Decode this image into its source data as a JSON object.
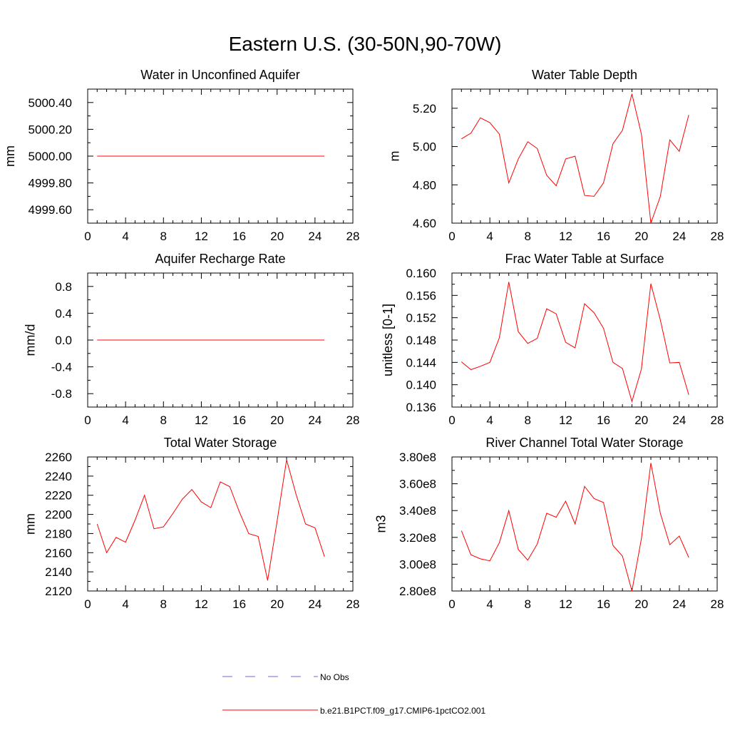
{
  "title": "Eastern U.S. (30-50N,90-70W)",
  "colors": {
    "model": "#ff0000",
    "obs": "#6b6bd6",
    "axis": "#000000"
  },
  "legend": [
    {
      "label": "No Obs",
      "style": "dashed",
      "color": "#6b6bd6"
    },
    {
      "label": "b.e21.B1PCT.f09_g17.CMIP6-1pctCO2.001",
      "style": "solid",
      "color": "#ff0000"
    }
  ],
  "chart_data": [
    {
      "type": "line",
      "title": "Water in Unconfined Aquifer",
      "ylabel": "mm",
      "xlim": [
        0,
        28
      ],
      "xticks": [
        0,
        4,
        8,
        12,
        16,
        20,
        24,
        28
      ],
      "xtick_labels": [
        "0",
        "4",
        "8",
        "12",
        "16",
        "20",
        "24",
        "28"
      ],
      "ylim": [
        4999.5,
        5000.5
      ],
      "yticks": [
        4999.6,
        4999.8,
        5000.0,
        5000.2,
        5000.4
      ],
      "ytick_labels": [
        "4999.60",
        "4999.80",
        "5000.00",
        "5000.20",
        "5000.40"
      ],
      "x": [
        1,
        2,
        3,
        4,
        5,
        6,
        7,
        8,
        9,
        10,
        11,
        12,
        13,
        14,
        15,
        16,
        17,
        18,
        19,
        20,
        21,
        22,
        23,
        24,
        25
      ],
      "values": [
        5000,
        5000,
        5000,
        5000,
        5000,
        5000,
        5000,
        5000,
        5000,
        5000,
        5000,
        5000,
        5000,
        5000,
        5000,
        5000,
        5000,
        5000,
        5000,
        5000,
        5000,
        5000,
        5000,
        5000,
        5000
      ]
    },
    {
      "type": "line",
      "title": "Water Table Depth",
      "ylabel": "m",
      "xlim": [
        0,
        28
      ],
      "xticks": [
        0,
        4,
        8,
        12,
        16,
        20,
        24,
        28
      ],
      "xtick_labels": [
        "0",
        "4",
        "8",
        "12",
        "16",
        "20",
        "24",
        "28"
      ],
      "ylim": [
        4.6,
        5.3
      ],
      "yticks": [
        4.6,
        4.8,
        5.0,
        5.2
      ],
      "ytick_labels": [
        "4.60",
        "4.80",
        "5.00",
        "5.20"
      ],
      "x": [
        1,
        2,
        3,
        4,
        5,
        6,
        7,
        8,
        9,
        10,
        11,
        12,
        13,
        14,
        15,
        16,
        17,
        18,
        19,
        20,
        21,
        22,
        23,
        24,
        25
      ],
      "values": [
        5.04,
        5.07,
        5.15,
        5.125,
        5.065,
        4.81,
        4.935,
        5.025,
        4.99,
        4.85,
        4.795,
        4.935,
        4.95,
        4.745,
        4.74,
        4.81,
        5.015,
        5.085,
        5.275,
        5.065,
        4.6,
        4.74,
        5.035,
        4.975,
        5.165
      ]
    },
    {
      "type": "line",
      "title": "Aquifer Recharge Rate",
      "ylabel": "mm/d",
      "xlim": [
        0,
        28
      ],
      "xticks": [
        0,
        4,
        8,
        12,
        16,
        20,
        24,
        28
      ],
      "xtick_labels": [
        "0",
        "4",
        "8",
        "12",
        "16",
        "20",
        "24",
        "28"
      ],
      "ylim": [
        -1.0,
        1.0
      ],
      "yticks": [
        -0.8,
        -0.4,
        0.0,
        0.4,
        0.8
      ],
      "ytick_labels": [
        "-0.8",
        "-0.4",
        "0.0",
        "0.4",
        "0.8"
      ],
      "x": [
        1,
        2,
        3,
        4,
        5,
        6,
        7,
        8,
        9,
        10,
        11,
        12,
        13,
        14,
        15,
        16,
        17,
        18,
        19,
        20,
        21,
        22,
        23,
        24,
        25
      ],
      "values": [
        0,
        0,
        0,
        0,
        0,
        0,
        0,
        0,
        0,
        0,
        0,
        0,
        0,
        0,
        0,
        0,
        0,
        0,
        0,
        0,
        0,
        0,
        0,
        0,
        0
      ]
    },
    {
      "type": "line",
      "title": "Frac Water Table at Surface",
      "ylabel": "unitless [0-1]",
      "xlim": [
        0,
        28
      ],
      "xticks": [
        0,
        4,
        8,
        12,
        16,
        20,
        24,
        28
      ],
      "xtick_labels": [
        "0",
        "4",
        "8",
        "12",
        "16",
        "20",
        "24",
        "28"
      ],
      "ylim": [
        0.136,
        0.16
      ],
      "yticks": [
        0.136,
        0.14,
        0.144,
        0.148,
        0.152,
        0.156,
        0.16
      ],
      "ytick_labels": [
        "0.136",
        "0.140",
        "0.144",
        "0.148",
        "0.152",
        "0.156",
        "0.160"
      ],
      "x": [
        1,
        2,
        3,
        4,
        5,
        6,
        7,
        8,
        9,
        10,
        11,
        12,
        13,
        14,
        15,
        16,
        17,
        18,
        19,
        20,
        21,
        22,
        23,
        24,
        25
      ],
      "values": [
        0.1441,
        0.1427,
        0.1433,
        0.144,
        0.1484,
        0.1584,
        0.1495,
        0.1474,
        0.1483,
        0.1536,
        0.1527,
        0.1476,
        0.1466,
        0.1545,
        0.1529,
        0.1501,
        0.144,
        0.1429,
        0.137,
        0.1428,
        0.1581,
        0.1516,
        0.1439,
        0.144,
        0.1382
      ]
    },
    {
      "type": "line",
      "title": "Total Water Storage",
      "ylabel": "mm",
      "xlim": [
        0,
        28
      ],
      "xticks": [
        0,
        4,
        8,
        12,
        16,
        20,
        24,
        28
      ],
      "xtick_labels": [
        "0",
        "4",
        "8",
        "12",
        "16",
        "20",
        "24",
        "28"
      ],
      "ylim": [
        2120,
        2260
      ],
      "yticks": [
        2120,
        2140,
        2160,
        2180,
        2200,
        2220,
        2240,
        2260
      ],
      "ytick_labels": [
        "2120",
        "2140",
        "2160",
        "2180",
        "2200",
        "2220",
        "2240",
        "2260"
      ],
      "x": [
        1,
        2,
        3,
        4,
        5,
        6,
        7,
        8,
        9,
        10,
        11,
        12,
        13,
        14,
        15,
        16,
        17,
        18,
        19,
        20,
        21,
        22,
        23,
        24,
        25
      ],
      "values": [
        2190,
        2160,
        2176,
        2171,
        2194,
        2220,
        2185,
        2187,
        2201,
        2216,
        2226,
        2213,
        2207,
        2234,
        2229,
        2203,
        2180,
        2177,
        2131,
        2193,
        2257,
        2221,
        2190,
        2186,
        2156
      ]
    },
    {
      "type": "line",
      "title": "River Channel Total Water Storage",
      "ylabel": "m3",
      "xlim": [
        0,
        28
      ],
      "xticks": [
        0,
        4,
        8,
        12,
        16,
        20,
        24,
        28
      ],
      "xtick_labels": [
        "0",
        "4",
        "8",
        "12",
        "16",
        "20",
        "24",
        "28"
      ],
      "ylim": [
        280000000,
        380000000
      ],
      "yticks": [
        280000000,
        300000000,
        320000000,
        340000000,
        360000000,
        380000000
      ],
      "ytick_labels": [
        "2.80e8",
        "3.00e8",
        "3.20e8",
        "3.40e8",
        "3.60e8",
        "3.80e8"
      ],
      "x": [
        1,
        2,
        3,
        4,
        5,
        6,
        7,
        8,
        9,
        10,
        11,
        12,
        13,
        14,
        15,
        16,
        17,
        18,
        19,
        20,
        21,
        22,
        23,
        24,
        25
      ],
      "values": [
        325000000,
        307000000,
        304000000,
        302500000,
        316000000,
        340000000,
        311000000,
        303000000,
        315000000,
        338000000,
        335000000,
        347000000,
        330000000,
        358000000,
        349000000,
        346000000,
        314000000,
        306000000,
        280000000,
        319000000,
        375500000,
        338000000,
        314500000,
        321000000,
        305000000
      ]
    }
  ]
}
